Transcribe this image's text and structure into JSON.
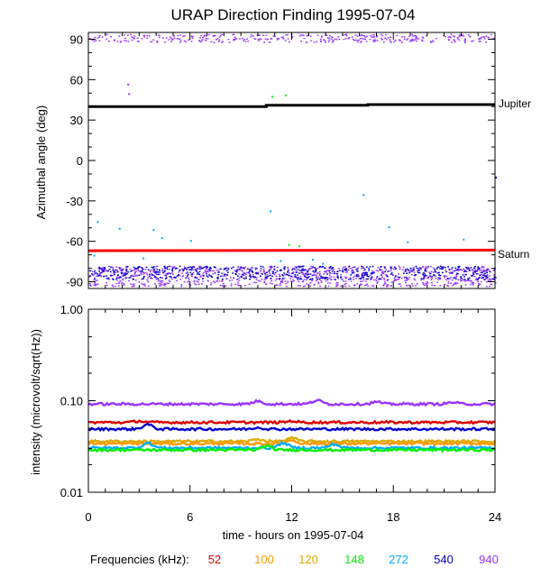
{
  "chart_data": {
    "title": "URAP Direction Finding  1995-07-04",
    "xlabel": "time - hours on 1995-07-04",
    "x_ticks": [
      0,
      6,
      12,
      18,
      24
    ],
    "xlim": [
      0,
      24
    ],
    "panels": [
      {
        "type": "scatter",
        "ylabel": "Azimuthal angle (deg)",
        "ylim": [
          -95,
          95
        ],
        "y_ticks": [
          90,
          60,
          30,
          0,
          -30,
          -60,
          -90
        ],
        "annotations": [
          {
            "text": "Jupiter",
            "series": [
              {
                "t": 0,
                "deg": 40
              },
              {
                "t": 10.5,
                "deg": 40
              },
              {
                "t": 10.5,
                "deg": 41
              },
              {
                "t": 16.5,
                "deg": 41
              },
              {
                "t": 16.5,
                "deg": 41.5
              },
              {
                "t": 24,
                "deg": 41.5
              }
            ],
            "color": "#000000"
          },
          {
            "text": "Saturn",
            "series": [
              {
                "t": 0,
                "deg": -67
              },
              {
                "t": 24,
                "deg": -66.5
              }
            ],
            "color": "#ff0000"
          }
        ],
        "bands": [
          {
            "color": "#9933ff",
            "from": 88,
            "to": 94,
            "t0": 0,
            "t1": 24
          },
          {
            "color": "#9933ff",
            "from": -93,
            "to": -78,
            "t0": 0,
            "t1": 24
          },
          {
            "color": "#0000cc",
            "from": -88,
            "to": -78,
            "t0": 0,
            "t1": 24
          }
        ],
        "points": [
          {
            "t": 2.3,
            "deg": 57,
            "color": "#9933ff"
          },
          {
            "t": 2.35,
            "deg": 50,
            "color": "#9933ff"
          },
          {
            "t": 10.8,
            "deg": 48,
            "color": "#00ee00"
          },
          {
            "t": 11.6,
            "deg": 49,
            "color": "#00ee00"
          },
          {
            "t": 10.7,
            "deg": -37,
            "color": "#00aaff"
          },
          {
            "t": 16.2,
            "deg": -25,
            "color": "#00aaff"
          },
          {
            "t": 0.5,
            "deg": -45,
            "color": "#00aaff"
          },
          {
            "t": 1.8,
            "deg": -50,
            "color": "#00aaff"
          },
          {
            "t": 3.8,
            "deg": -51,
            "color": "#00aaff"
          },
          {
            "t": 4.3,
            "deg": -57,
            "color": "#00aaff"
          },
          {
            "t": 6.0,
            "deg": -59,
            "color": "#00aaff"
          },
          {
            "t": 17.7,
            "deg": -49,
            "color": "#00aaff"
          },
          {
            "t": 18.8,
            "deg": -60,
            "color": "#00aaff"
          },
          {
            "t": 22.1,
            "deg": -58,
            "color": "#00aaff"
          },
          {
            "t": 24.0,
            "deg": -12,
            "color": "#0000cc"
          },
          {
            "t": 11.8,
            "deg": -62,
            "color": "#00ee00"
          },
          {
            "t": 12.4,
            "deg": -63,
            "color": "#00ee00"
          },
          {
            "t": 0.3,
            "deg": -70,
            "color": "#00aaff"
          },
          {
            "t": 3.2,
            "deg": -72,
            "color": "#00aaff"
          },
          {
            "t": 11.3,
            "deg": -74,
            "color": "#00aaff"
          },
          {
            "t": 13.2,
            "deg": -73,
            "color": "#00aaff"
          },
          {
            "t": 13.8,
            "deg": -76,
            "color": "#00aaff"
          }
        ]
      },
      {
        "type": "line",
        "ylabel": "intensity (microvolt/sqrt(Hz))",
        "scale": "log",
        "ylim": [
          0.01,
          1.0
        ],
        "y_ticks": [
          {
            "v": 1.0,
            "label": "1.00"
          },
          {
            "v": 0.1,
            "label": "0.10"
          },
          {
            "v": 0.01,
            "label": "0.01"
          }
        ],
        "series": [
          {
            "freq": "940",
            "color": "#9933ff",
            "value": 0.092,
            "bumps": [
              {
                "t": 10.0,
                "dv": 0.007
              },
              {
                "t": 13.5,
                "dv": 0.009
              },
              {
                "t": 17.0,
                "dv": 0.005
              },
              {
                "t": 21.5,
                "dv": 0.004
              }
            ]
          },
          {
            "freq": "52",
            "color": "#dd0000",
            "value": 0.058,
            "bumps": [
              {
                "t": 3.0,
                "dv": 0.002
              },
              {
                "t": 12.0,
                "dv": 0.002
              }
            ]
          },
          {
            "freq": "540",
            "color": "#0000cc",
            "value": 0.049,
            "bumps": [
              {
                "t": 3.5,
                "dv": 0.006
              },
              {
                "t": 10.0,
                "dv": 0.002
              }
            ]
          },
          {
            "freq": "120",
            "color": "#ddaa00",
            "value": 0.036,
            "bumps": [
              {
                "t": 10.0,
                "dv": 0.002
              },
              {
                "t": 12.0,
                "dv": 0.003
              }
            ]
          },
          {
            "freq": "100",
            "color": "#ff9900",
            "value": 0.034,
            "bumps": [
              {
                "t": 12.0,
                "dv": 0.003
              }
            ]
          },
          {
            "freq": "272",
            "color": "#00aaff",
            "value": 0.0305,
            "bumps": [
              {
                "t": 3.5,
                "dv": 0.004
              },
              {
                "t": 11.5,
                "dv": 0.004
              },
              {
                "t": 14.5,
                "dv": 0.003
              }
            ]
          },
          {
            "freq": "148",
            "color": "#00ee00",
            "value": 0.029,
            "bumps": [
              {
                "t": 10.5,
                "dv": 0.003
              }
            ]
          }
        ]
      }
    ],
    "legend": {
      "label": "Frequencies (kHz):",
      "placement": "bottom",
      "entries": [
        {
          "text": "52",
          "color": "#dd0000"
        },
        {
          "text": "100",
          "color": "#ff9900"
        },
        {
          "text": "120",
          "color": "#ddaa00"
        },
        {
          "text": "148",
          "color": "#00ee00"
        },
        {
          "text": "272",
          "color": "#00aaff"
        },
        {
          "text": "540",
          "color": "#0000cc"
        },
        {
          "text": "940",
          "color": "#9933ff"
        }
      ]
    }
  }
}
